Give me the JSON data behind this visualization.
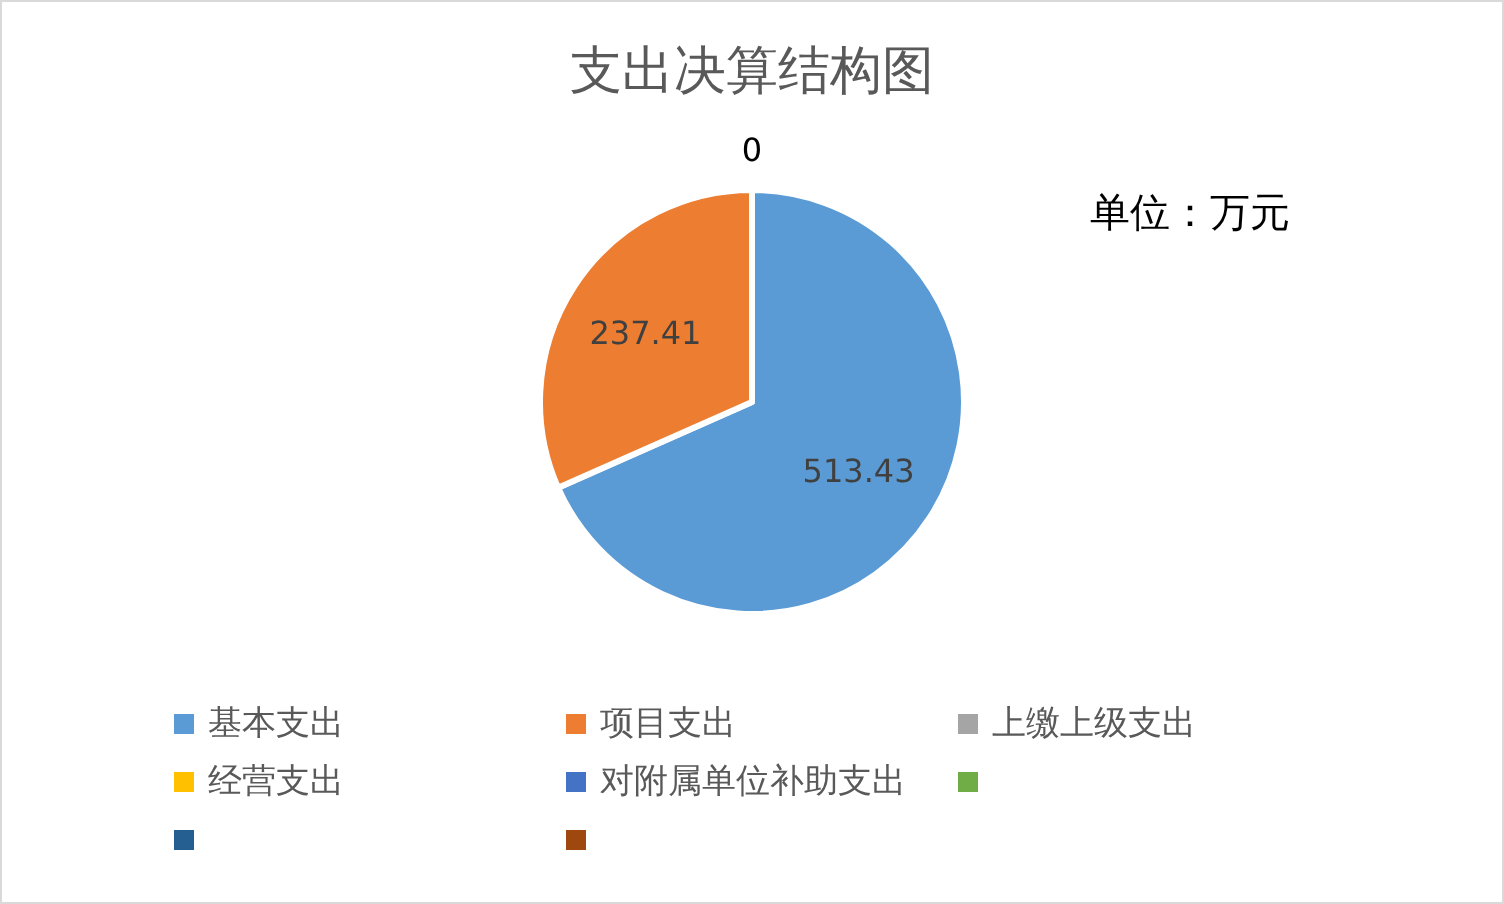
{
  "chart_data": {
    "type": "pie",
    "title": "支出决算结构图",
    "annotations": [
      "单位：万元"
    ],
    "categories": [
      "基本支出",
      "项目支出",
      "上缴上级支出",
      "经营支出",
      "对附属单位补助支出",
      null,
      null,
      null
    ],
    "values": [
      513.43,
      237.41,
      0,
      null,
      null,
      null,
      null,
      null
    ],
    "value_labels": [
      "513.43",
      "237.41",
      "0",
      null,
      null,
      null,
      null,
      null
    ],
    "colors": [
      "#5b9bd5",
      "#ed7d31",
      "#a5a5a5",
      "#ffc000",
      "#4472c4",
      "#70ad47",
      "#255e91",
      "#9e480e"
    ],
    "legend": "bottom"
  }
}
